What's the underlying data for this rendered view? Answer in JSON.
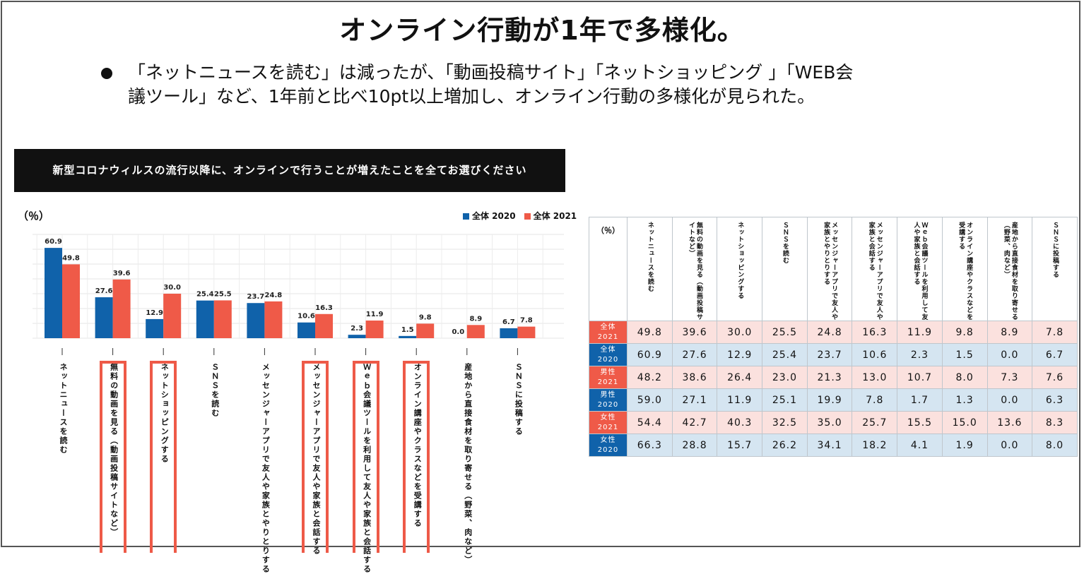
{
  "title": "オンライン行動が1年で多様化。",
  "bullet": {
    "line1": "「ネットニュースを読む」は減ったが、「動画投稿サイト」「ネットショッピング 」「WEB会",
    "line2": "議ツール」など、1年前と比べ10pt以上増加し、オンライン行動の多様化が見られた。"
  },
  "colors": {
    "series_2020": "#1062aa",
    "series_2021": "#ef5a48",
    "highlight": "#ee5a48"
  },
  "chart_data": {
    "type": "bar",
    "title": "新型コロナウィルスの流行以降に、オンラインで行うことが増えたことを全てお選びください",
    "ylabel": "（％）",
    "ylim": [
      0,
      70
    ],
    "grid": true,
    "legend_position": "top-right",
    "categories": [
      "ネットニュースを読む",
      "無料の動画を見る（動画投稿サイトなど）",
      "ネットショッピングする",
      "ＳＮＳを読む",
      "メッセンジャーアプリで友人や家族とやりとりする",
      "メッセンジャーアプリで友人や家族と会話する",
      "Ｗｅｂ会議ツールを利用して友人や家族と会話する",
      "オンライン講座やクラスなどを受講する",
      "産地から直接食材を取り寄せる（野菜、肉など）",
      "ＳＮＳに投稿する"
    ],
    "highlighted": [
      1,
      2,
      5,
      6,
      7
    ],
    "series": [
      {
        "name": "全体 2020",
        "values": [
          60.9,
          27.6,
          12.9,
          25.4,
          23.7,
          10.6,
          2.3,
          1.5,
          0.0,
          6.7
        ]
      },
      {
        "name": "全体 2021",
        "values": [
          49.8,
          39.6,
          30.0,
          25.5,
          24.8,
          16.3,
          11.9,
          9.8,
          8.9,
          7.8
        ]
      }
    ],
    "value_labels": [
      [
        "60.9",
        "27.6",
        "12.9",
        "25.4",
        "23.7",
        "10.6",
        "2.3",
        "1.5",
        "0.0",
        "6.7"
      ],
      [
        "49.8",
        "39.6",
        "30.0",
        "25.5",
        "24.8",
        "16.3",
        "11.9",
        "9.8",
        "8.9",
        "7.8"
      ]
    ]
  },
  "table": {
    "corner": "（％）",
    "columns": [
      "ネットニュースを読む",
      "無料の動画を見る（動画投稿サイトなど）",
      "ネットショッピングする",
      "ＳＮＳを読む",
      "メッセンジャーアプリで友人や家族とやりとりする",
      "メッセンジャーアプリで友人や家族と会話する",
      "Ｗｅｂ会議ツールを利用して友人や家族と会話する",
      "オンライン講座やクラスなどを受講する",
      "産地から直接食材を取り寄せる（野菜、肉など）",
      "ＳＮＳに投稿する"
    ],
    "rows": [
      {
        "group": "全体",
        "year": "2021",
        "values": [
          "49.8",
          "39.6",
          "30.0",
          "25.5",
          "24.8",
          "16.3",
          "11.9",
          "9.8",
          "8.9",
          "7.8"
        ]
      },
      {
        "group": "全体",
        "year": "2020",
        "values": [
          "60.9",
          "27.6",
          "12.9",
          "25.4",
          "23.7",
          "10.6",
          "2.3",
          "1.5",
          "0.0",
          "6.7"
        ]
      },
      {
        "group": "男性",
        "year": "2021",
        "values": [
          "48.2",
          "38.6",
          "26.4",
          "23.0",
          "21.3",
          "13.0",
          "10.7",
          "8.0",
          "7.3",
          "7.6"
        ]
      },
      {
        "group": "男性",
        "year": "2020",
        "values": [
          "59.0",
          "27.1",
          "11.9",
          "25.1",
          "19.9",
          "7.8",
          "1.7",
          "1.3",
          "0.0",
          "6.3"
        ]
      },
      {
        "group": "女性",
        "year": "2021",
        "values": [
          "54.4",
          "42.7",
          "40.3",
          "32.5",
          "35.0",
          "25.7",
          "15.5",
          "15.0",
          "13.6",
          "8.3"
        ]
      },
      {
        "group": "女性",
        "year": "2020",
        "values": [
          "66.3",
          "28.8",
          "15.7",
          "26.2",
          "34.1",
          "18.2",
          "4.1",
          "1.9",
          "0.0",
          "8.0"
        ]
      }
    ]
  }
}
